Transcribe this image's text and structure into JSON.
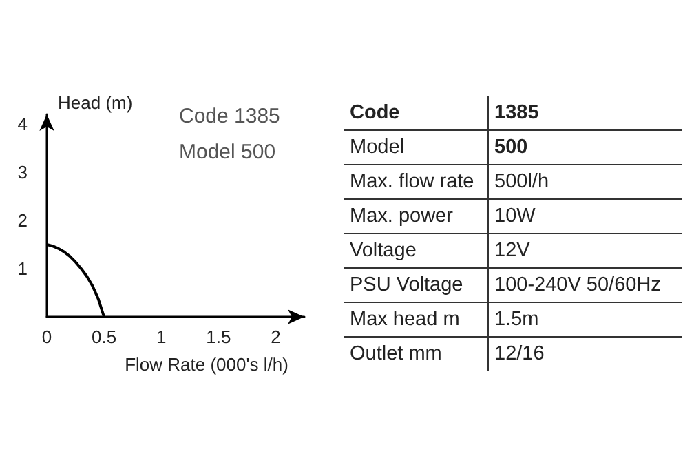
{
  "chart_data": [
    {
      "type": "line",
      "xlabel": "Flow Rate (000's l/h)",
      "ylabel": "Head (m)",
      "x": [
        0,
        0.05,
        0.1,
        0.15,
        0.2,
        0.25,
        0.3,
        0.35,
        0.4,
        0.45,
        0.5
      ],
      "series": [
        {
          "color": "#000000",
          "values": [
            1.5,
            1.47,
            1.42,
            1.35,
            1.26,
            1.14,
            1.0,
            0.84,
            0.64,
            0.37,
            0
          ]
        }
      ],
      "xlim": [
        0,
        2.25
      ],
      "ylim": [
        0,
        4.2
      ],
      "xticks": [
        0,
        0.5,
        1,
        1.5,
        2
      ],
      "yticks": [
        1,
        2,
        3,
        4
      ],
      "grid": false,
      "marker": "none",
      "annotations": [
        "Code 1385",
        "Model 500"
      ]
    },
    {
      "type": "other",
      "annotations": [
        "Code",
        "1385",
        "Model",
        "500",
        "Max. flow rate",
        "500l/h",
        "Max. power",
        "10W",
        "Voltage",
        "12V",
        "PSU Voltage",
        "100-240V 50/60Hz",
        "Max head m",
        "1.5m",
        "Outlet mm",
        "12/16"
      ]
    }
  ]
}
